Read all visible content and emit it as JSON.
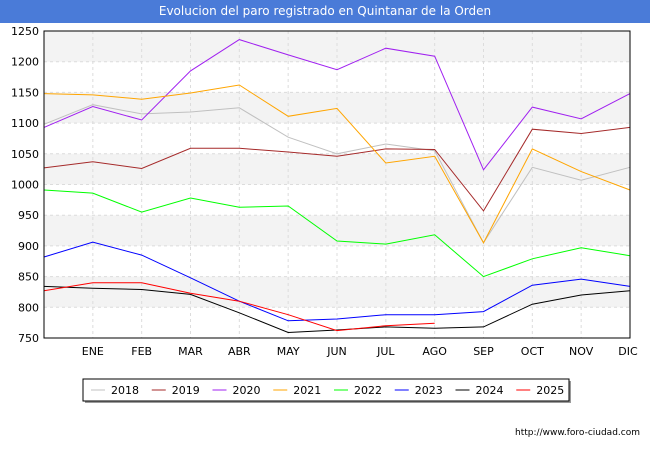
{
  "header": {
    "title": "Evolucion del paro registrado en Quintanar de la Orden"
  },
  "footer": {
    "url": "http://www.foro-ciudad.com"
  },
  "chart_data": {
    "type": "line",
    "title": "Evolucion del paro registrado en Quintanar de la Orden",
    "xlabel": "",
    "ylabel": "",
    "categories": [
      "",
      "ENE",
      "FEB",
      "MAR",
      "ABR",
      "MAY",
      "JUN",
      "JUL",
      "AGO",
      "SEP",
      "OCT",
      "NOV",
      "DIC"
    ],
    "ylim": [
      750,
      1250
    ],
    "yticks": [
      750,
      800,
      850,
      900,
      950,
      1000,
      1050,
      1100,
      1150,
      1200,
      1250
    ],
    "grid": true,
    "legend_position": "bottom",
    "series": [
      {
        "name": "2018",
        "color": "#c0c0c0",
        "values": [
          1098,
          1130,
          1115,
          1118,
          1125,
          1077,
          1050,
          1066,
          1055,
          905,
          1028,
          1007,
          1028
        ]
      },
      {
        "name": "2019",
        "color": "#a52a2a",
        "values": [
          1027,
          1037,
          1026,
          1059,
          1059,
          1053,
          1046,
          1058,
          1057,
          957,
          1090,
          1083,
          1093
        ]
      },
      {
        "name": "2020",
        "color": "#a020f0",
        "values": [
          1093,
          1127,
          1105,
          1185,
          1236,
          1211,
          1187,
          1222,
          1209,
          1024,
          1126,
          1107,
          1148
        ]
      },
      {
        "name": "2021",
        "color": "#ffa500",
        "values": [
          1148,
          1146,
          1139,
          1149,
          1162,
          1111,
          1124,
          1035,
          1046,
          905,
          1058,
          1021,
          991
        ]
      },
      {
        "name": "2022",
        "color": "#00ff00",
        "values": [
          991,
          986,
          955,
          978,
          963,
          965,
          908,
          903,
          918,
          850,
          879,
          897,
          884
        ]
      },
      {
        "name": "2023",
        "color": "#0000ff",
        "values": [
          882,
          906,
          885,
          848,
          810,
          778,
          781,
          788,
          788,
          793,
          836,
          846,
          834
        ]
      },
      {
        "name": "2024",
        "color": "#000000",
        "values": [
          834,
          831,
          829,
          821,
          791,
          759,
          763,
          768,
          766,
          768,
          805,
          820,
          827
        ]
      },
      {
        "name": "2025",
        "color": "#ff0000",
        "values": [
          827,
          840,
          840,
          823,
          810,
          788,
          762,
          770,
          774,
          null,
          null,
          null,
          null
        ]
      }
    ]
  }
}
